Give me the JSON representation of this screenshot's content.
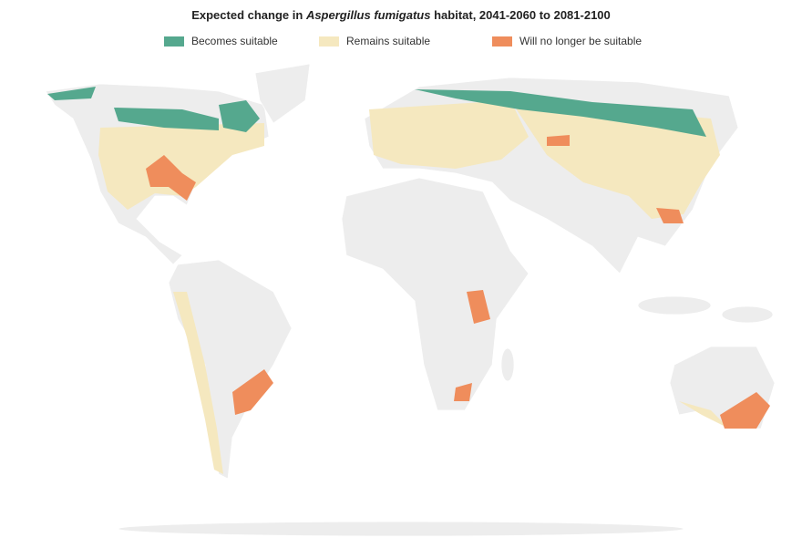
{
  "title": {
    "prefix": "Expected change in",
    "species": "Aspergillus fumigatus",
    "suffix": "habitat, 2041-2060 to 2081-2100"
  },
  "legend": {
    "items": [
      {
        "label": "Becomes suitable",
        "color": "#55a88e"
      },
      {
        "label": "Remains suitable",
        "color": "#f5e8bf"
      },
      {
        "label": "Will no longer be suitable",
        "color": "#ef8d5c"
      }
    ]
  }
}
